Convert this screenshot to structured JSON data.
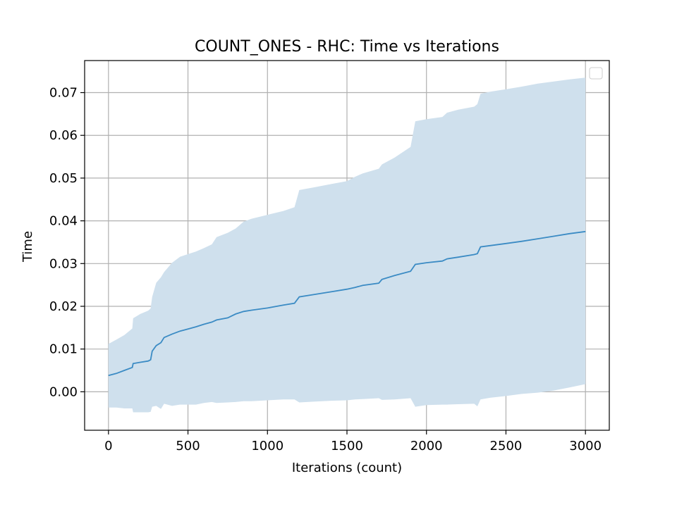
{
  "chart_data": {
    "type": "line",
    "title": "COUNT_ONES - RHC: Time vs Iterations",
    "xlabel": "Iterations (count)",
    "ylabel": "Time",
    "xlim": [
      -150,
      3150
    ],
    "ylim": [
      -0.009,
      0.0775
    ],
    "xticks": [
      0,
      500,
      1000,
      1500,
      2000,
      2500,
      3000
    ],
    "xtick_labels": [
      "0",
      "500",
      "1000",
      "1500",
      "2000",
      "2500",
      "3000"
    ],
    "yticks": [
      0.0,
      0.01,
      0.02,
      0.03,
      0.04,
      0.05,
      0.06,
      0.07
    ],
    "ytick_labels": [
      "0.00",
      "0.01",
      "0.02",
      "0.03",
      "0.04",
      "0.05",
      "0.06",
      "0.07"
    ],
    "grid": true,
    "legend": {
      "location": "top-right",
      "entries": []
    },
    "colors": {
      "line": "#3b8bc4",
      "band": "#cfe0ed",
      "grid": "#b0b0b0"
    },
    "series": [
      {
        "x": [
          0,
          50,
          100,
          150,
          155,
          200,
          250,
          265,
          275,
          300,
          330,
          350,
          400,
          450,
          500,
          550,
          600,
          650,
          680,
          750,
          800,
          850,
          900,
          1000,
          1100,
          1170,
          1200,
          1300,
          1400,
          1500,
          1550,
          1600,
          1700,
          1720,
          1800,
          1900,
          1930,
          2000,
          2100,
          2130,
          2200,
          2300,
          2320,
          2340,
          2400,
          2500,
          2600,
          2700,
          2800,
          2900,
          3000
        ],
        "mean": [
          0.0038,
          0.0043,
          0.005,
          0.0057,
          0.0066,
          0.0069,
          0.0072,
          0.0075,
          0.0095,
          0.0108,
          0.0115,
          0.0127,
          0.0135,
          0.0142,
          0.0147,
          0.0152,
          0.0158,
          0.0163,
          0.0168,
          0.0173,
          0.0182,
          0.0188,
          0.0191,
          0.0196,
          0.0203,
          0.0207,
          0.0222,
          0.0228,
          0.0234,
          0.024,
          0.0244,
          0.0249,
          0.0254,
          0.0263,
          0.0272,
          0.0282,
          0.0298,
          0.0302,
          0.0306,
          0.0311,
          0.0315,
          0.0321,
          0.0323,
          0.0339,
          0.0342,
          0.0347,
          0.0352,
          0.0358,
          0.0364,
          0.037,
          0.0375
        ],
        "upper": [
          0.0112,
          0.0122,
          0.0133,
          0.0148,
          0.0172,
          0.0182,
          0.019,
          0.0195,
          0.0222,
          0.0255,
          0.0268,
          0.028,
          0.0302,
          0.0316,
          0.0322,
          0.0328,
          0.0336,
          0.0345,
          0.0362,
          0.0372,
          0.0382,
          0.0398,
          0.0405,
          0.0414,
          0.0423,
          0.0432,
          0.0472,
          0.0479,
          0.0486,
          0.0493,
          0.0503,
          0.0511,
          0.0522,
          0.0532,
          0.0548,
          0.0573,
          0.0633,
          0.0638,
          0.0643,
          0.0653,
          0.066,
          0.0667,
          0.0673,
          0.0697,
          0.0702,
          0.0708,
          0.0714,
          0.0721,
          0.0726,
          0.0731,
          0.0735
        ],
        "lower": [
          -0.0037,
          -0.0037,
          -0.0039,
          -0.0039,
          -0.0048,
          -0.0048,
          -0.0048,
          -0.0047,
          -0.0035,
          -0.0033,
          -0.004,
          -0.0028,
          -0.0033,
          -0.003,
          -0.003,
          -0.003,
          -0.0026,
          -0.0024,
          -0.0026,
          -0.0025,
          -0.0024,
          -0.0022,
          -0.0022,
          -0.002,
          -0.0018,
          -0.0018,
          -0.0025,
          -0.0023,
          -0.0021,
          -0.002,
          -0.0018,
          -0.0017,
          -0.0015,
          -0.0019,
          -0.0018,
          -0.0015,
          -0.0035,
          -0.0031,
          -0.003,
          -0.003,
          -0.0029,
          -0.0028,
          -0.0034,
          -0.0018,
          -0.0014,
          -0.001,
          -0.0005,
          -0.0002,
          0.0003,
          0.001,
          0.0018
        ]
      }
    ]
  }
}
